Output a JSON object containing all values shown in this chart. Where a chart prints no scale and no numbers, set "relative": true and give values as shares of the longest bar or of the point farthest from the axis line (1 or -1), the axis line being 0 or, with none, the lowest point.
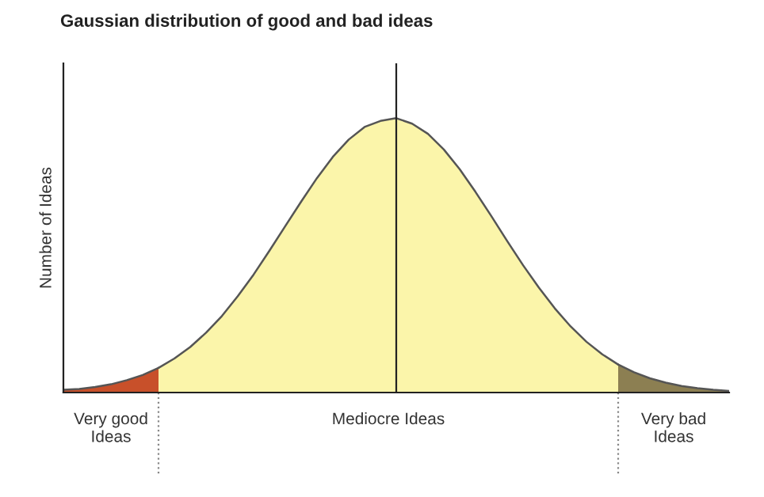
{
  "chart_data": {
    "type": "area",
    "title": "Gaussian distribution of good and bad ideas",
    "ylabel": "Number of Ideas",
    "relative": true,
    "grid": false,
    "legend": false,
    "categories": [
      null,
      null,
      null,
      null,
      null,
      null,
      null,
      null,
      null,
      null,
      null,
      null,
      null,
      null,
      null,
      null,
      null,
      null,
      null,
      null,
      null,
      null,
      null,
      null,
      null,
      null,
      null,
      null,
      null,
      null,
      null,
      null,
      null,
      null,
      null,
      null,
      null,
      null,
      null,
      null,
      null,
      null,
      null
    ],
    "series": [
      {
        "name": "Very good\nIdeas",
        "color": "#c8502a",
        "values": [
          0.01,
          0.013,
          0.02,
          0.03,
          0.045,
          0.064,
          0.09,
          null,
          null,
          null,
          null,
          null,
          null,
          null,
          null,
          null,
          null,
          null,
          null,
          null,
          null,
          null,
          null,
          null,
          null,
          null,
          null,
          null,
          null,
          null,
          null,
          null,
          null,
          null,
          null,
          null,
          null,
          null,
          null,
          null,
          null,
          null,
          null
        ]
      },
      {
        "name": "Mediocre Ideas",
        "color": "#fbf5aa",
        "values": [
          null,
          null,
          null,
          null,
          null,
          null,
          0.09,
          0.124,
          0.166,
          0.218,
          0.279,
          0.351,
          0.43,
          0.517,
          0.607,
          0.696,
          0.782,
          0.859,
          0.922,
          0.968,
          0.99,
          1,
          0.98,
          0.943,
          0.886,
          0.814,
          0.731,
          0.643,
          0.552,
          0.464,
          0.382,
          0.307,
          0.241,
          0.185,
          0.139,
          0.102,
          null,
          null,
          null,
          null,
          null,
          null,
          null
        ]
      },
      {
        "name": "Very bad\nIdeas",
        "color": "#8c7f52",
        "values": [
          null,
          null,
          null,
          null,
          null,
          null,
          null,
          null,
          null,
          null,
          null,
          null,
          null,
          null,
          null,
          null,
          null,
          null,
          null,
          null,
          null,
          null,
          null,
          null,
          null,
          null,
          null,
          null,
          null,
          null,
          null,
          null,
          null,
          null,
          null,
          0.102,
          0.074,
          0.052,
          0.036,
          0.024,
          0.016,
          0.01,
          0.006
        ]
      }
    ]
  }
}
